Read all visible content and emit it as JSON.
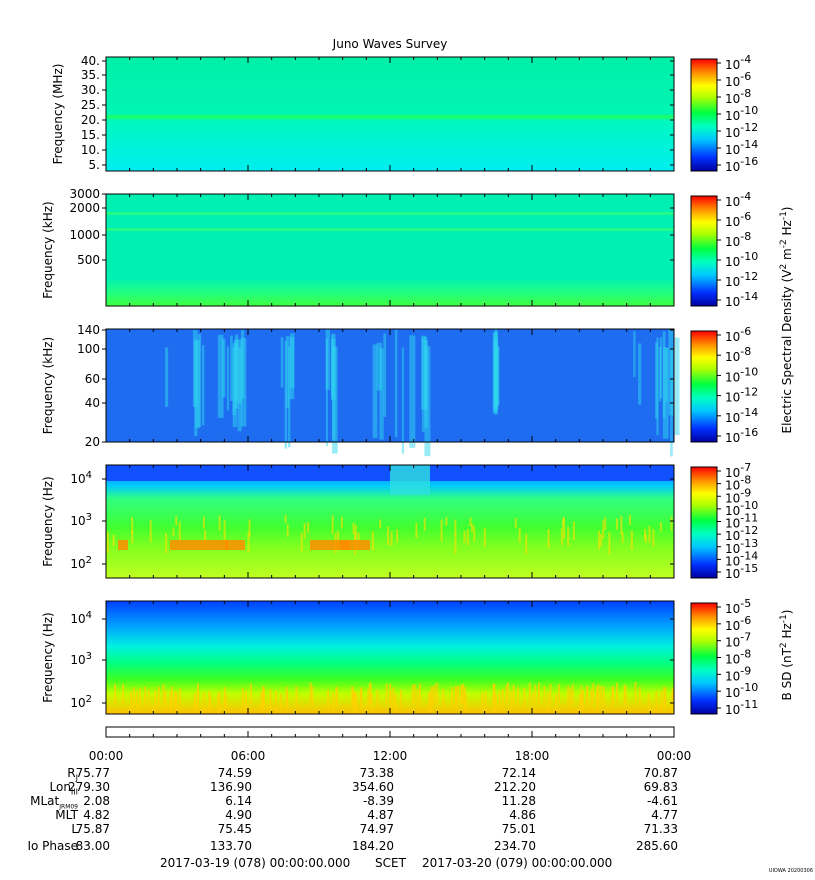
{
  "title": "Juno Waves Survey",
  "panels": [
    {
      "ylabel": "Frequency (MHz)",
      "yticks": [
        "40.",
        "35.",
        "30.",
        "25.",
        "20.",
        "15.",
        "10.",
        "5."
      ],
      "yscale": "linear",
      "ylim": [
        3,
        41
      ],
      "colorbar_ticks": [
        "10",
        "10",
        "10",
        "10",
        "10",
        "10",
        "10"
      ],
      "colorbar_exponents": [
        "-4",
        "-6",
        "-8",
        "-10",
        "-12",
        "-14",
        "-16"
      ],
      "style": "hf"
    },
    {
      "ylabel": "Frequency (kHz)",
      "yticks": [
        "3000",
        "2000",
        "1000",
        "500"
      ],
      "yscale": "log",
      "ylim": [
        140,
        3000
      ],
      "colorbar_ticks": [
        "10",
        "10",
        "10",
        "10",
        "10",
        "10"
      ],
      "colorbar_exponents": [
        "-4",
        "-6",
        "-8",
        "-10",
        "-12",
        "-14"
      ],
      "style": "mf"
    },
    {
      "ylabel": "Frequency (kHz)",
      "yticks": [
        "140",
        "100",
        "60",
        "40",
        "20"
      ],
      "yscale": "linear",
      "ylim": [
        20,
        140
      ],
      "colorbar_ticks": [
        "10",
        "10",
        "10",
        "10",
        "10",
        "10"
      ],
      "colorbar_exponents": [
        "-6",
        "-8",
        "-10",
        "-12",
        "-14",
        "-16"
      ],
      "style": "lf"
    },
    {
      "ylabel": "Frequency (Hz)",
      "yticks": [
        "10",
        "10",
        "10"
      ],
      "ytick_exponents": [
        "4",
        "3",
        "2"
      ],
      "yscale": "log",
      "ylim": [
        50,
        20000
      ],
      "colorbar_ticks": [
        "10",
        "10",
        "10",
        "10",
        "10",
        "10",
        "10",
        "10",
        "10"
      ],
      "colorbar_exponents": [
        "-7",
        "-8",
        "-9",
        "-10",
        "-11",
        "-12",
        "-13",
        "-14",
        "-15"
      ],
      "style": "elf"
    },
    {
      "ylabel": "Frequency (Hz)",
      "yticks": [
        "10",
        "10",
        "10"
      ],
      "ytick_exponents": [
        "4",
        "3",
        "2"
      ],
      "yscale": "log",
      "ylim": [
        50,
        20000
      ],
      "colorbar_ticks": [
        "10",
        "10",
        "10",
        "10",
        "10",
        "10",
        "10"
      ],
      "colorbar_exponents": [
        "-5",
        "-6",
        "-7",
        "-8",
        "-9",
        "-10",
        "-11"
      ],
      "style": "bsd"
    }
  ],
  "colorbar_label_e": "Electric Spectral Density (V",
  "colorbar_label_b": "B SD (nT",
  "time_ticks": [
    "00:00",
    "06:00",
    "12:00",
    "18:00",
    "00:00"
  ],
  "ephemeris": {
    "labels": [
      "R",
      "Lon",
      "MLat",
      "MLT",
      "L",
      "Io Phase"
    ],
    "label_subscripts": [
      "J",
      "III",
      "JRM09",
      "",
      "",
      ""
    ],
    "rows": [
      [
        "75.77",
        "74.59",
        "73.38",
        "72.14",
        "70.87"
      ],
      [
        "279.30",
        "136.90",
        "354.60",
        "212.20",
        "69.83"
      ],
      [
        "2.08",
        "6.14",
        "-8.39",
        "11.28",
        "-4.61"
      ],
      [
        "4.82",
        "4.90",
        "4.87",
        "4.86",
        "4.77"
      ],
      [
        "75.87",
        "75.45",
        "74.97",
        "75.01",
        "71.33"
      ],
      [
        "83.00",
        "133.70",
        "184.20",
        "234.70",
        "285.60"
      ]
    ]
  },
  "footer": {
    "start": "2017-03-19 (078) 00:00:00.000",
    "axis": "SCET",
    "end": "2017-03-20 (079) 00:00:00.000"
  },
  "stamp": "UIOWA 20200306",
  "chart_data": {
    "type": "heatmap",
    "title": "Juno Waves Survey",
    "x_ticks": [
      "00:00",
      "06:00",
      "12:00",
      "18:00",
      "00:00"
    ],
    "series": [
      {
        "name": "",
        "ylabel": "Frequency (MHz)",
        "ylim": [
          3,
          41
        ]
      },
      {
        "name": "",
        "ylabel": "Frequency (kHz)",
        "ylim": [
          140,
          3000
        ]
      },
      {
        "name": "",
        "ylabel": "Frequency (kHz)",
        "ylim": [
          20,
          140
        ]
      },
      {
        "name": "",
        "ylabel": "Frequency (Hz)",
        "ylim": [
          50,
          20000
        ]
      },
      {
        "name": "",
        "ylabel": "Frequency (Hz)",
        "ylim": [
          50,
          20000
        ]
      }
    ]
  }
}
